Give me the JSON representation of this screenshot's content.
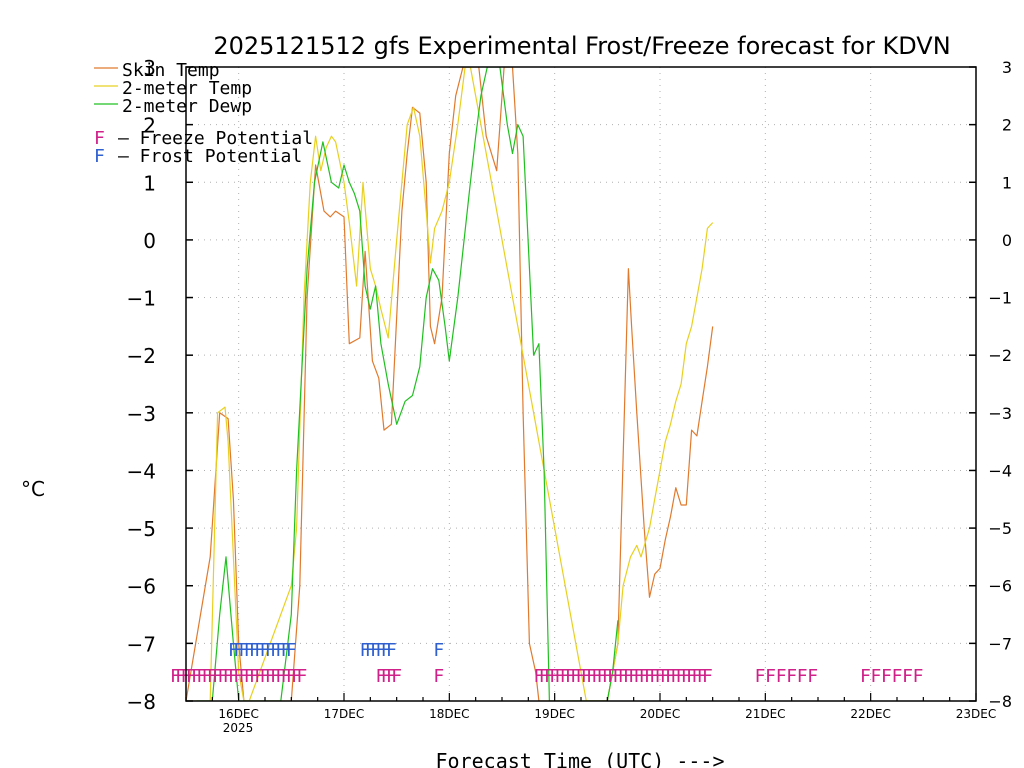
{
  "chart_data": {
    "type": "line",
    "title": "2025121512 gfs Experimental Frost/Freeze forecast for KDVN",
    "xlabel": "Forecast Time (UTC) --->",
    "ylabel": "°C",
    "ylim": [
      -8,
      3
    ],
    "xlim": [
      -0.5,
      7
    ],
    "grid": true,
    "yticks": [
      "-8",
      "-7",
      "-6",
      "-5",
      "-4",
      "-3",
      "-2",
      "-1",
      "0",
      "1",
      "2",
      "3"
    ],
    "xticks": [
      {
        "day": 0,
        "label": "16DEC"
      },
      {
        "day": 1,
        "label": "17DEC"
      },
      {
        "day": 2,
        "label": "18DEC"
      },
      {
        "day": 3,
        "label": "19DEC"
      },
      {
        "day": 4,
        "label": "20DEC"
      },
      {
        "day": 5,
        "label": "21DEC"
      },
      {
        "day": 6,
        "label": "22DEC"
      },
      {
        "day": 7,
        "label": "23DEC"
      }
    ],
    "year_label": "2025",
    "legend": {
      "placement": "top-left",
      "entries": [
        "Skin Temp",
        "2-meter Temp",
        "2-meter Dewp"
      ],
      "freeze_letter": "F",
      "freeze_text": "– Freeze Potential",
      "frost_letter": "F",
      "frost_text": "– Frost Potential"
    },
    "colors": {
      "skin": "#e07a2e",
      "temp2m": "#e8d020",
      "dewp": "#20c020",
      "freeze": "#d0208a",
      "frost": "#3060d0",
      "grid": "#b0b0b0"
    },
    "series": [
      {
        "name": "Skin Temp",
        "x": [
          -0.5,
          -0.27,
          -0.18,
          -0.1,
          -0.05,
          0.0,
          0.05,
          0.12,
          0.25,
          0.5,
          0.58,
          0.65,
          0.73,
          0.81,
          0.87,
          0.92,
          1.0,
          1.05,
          1.15,
          1.2,
          1.27,
          1.33,
          1.38,
          1.45,
          1.55,
          1.6,
          1.65,
          1.72,
          1.78,
          1.82,
          1.86,
          1.93,
          2.0,
          2.06,
          2.13,
          2.2,
          2.28,
          2.35,
          2.45,
          2.52,
          2.6,
          2.65,
          2.7,
          2.76,
          2.82,
          2.85,
          2.9,
          2.96,
          3.0,
          3.05,
          3.1,
          3.3,
          3.5,
          3.6,
          3.7,
          3.73,
          3.78,
          3.85,
          3.9,
          3.95,
          4.0,
          4.05,
          4.1,
          4.15,
          4.2,
          4.25,
          4.3,
          4.35,
          4.4,
          4.45,
          4.5
        ],
        "values": [
          -8.0,
          -5.5,
          -3.0,
          -3.1,
          -4.5,
          -7.0,
          -8.0,
          -8.0,
          -8.0,
          -8.0,
          -6.0,
          -1.0,
          1.3,
          0.5,
          0.4,
          0.5,
          0.4,
          -1.8,
          -1.7,
          -0.2,
          -2.1,
          -2.4,
          -3.3,
          -3.2,
          0.5,
          1.5,
          2.3,
          2.2,
          1.0,
          -1.5,
          -1.8,
          -1.0,
          1.5,
          2.5,
          3.0,
          3.0,
          3.0,
          1.8,
          1.2,
          3.0,
          3.0,
          1.5,
          -3.0,
          -7.0,
          -7.5,
          -8.0,
          -8.0,
          -8.0,
          -8.0,
          -8.0,
          -8.0,
          -8.0,
          -8.0,
          -7.0,
          -0.5,
          -1.5,
          -3.0,
          -5.0,
          -6.2,
          -5.8,
          -5.7,
          -5.2,
          -4.8,
          -4.3,
          -4.6,
          -4.6,
          -3.3,
          -3.4,
          -2.8,
          -2.2,
          -1.5
        ]
      },
      {
        "name": "2-meter Temp",
        "x": [
          -0.5,
          -0.37,
          -0.27,
          -0.2,
          -0.13,
          -0.1,
          -0.05,
          0.0,
          0.05,
          0.1,
          0.5,
          0.55,
          0.62,
          0.68,
          0.73,
          0.78,
          0.83,
          0.88,
          0.92,
          1.0,
          1.05,
          1.12,
          1.18,
          1.25,
          1.3,
          1.35,
          1.42,
          1.5,
          1.55,
          1.6,
          1.66,
          1.72,
          1.78,
          1.82,
          1.86,
          1.93,
          2.0,
          2.08,
          2.15,
          2.2,
          3.3,
          3.5,
          3.6,
          3.65,
          3.72,
          3.78,
          3.82,
          3.9,
          3.95,
          4.0,
          4.05,
          4.1,
          4.15,
          4.2,
          4.25,
          4.3,
          4.35,
          4.4,
          4.45,
          4.5
        ],
        "values": [
          -8.0,
          -8.0,
          -8.0,
          -3.0,
          -2.9,
          -3.5,
          -5.5,
          -7.5,
          -8.0,
          -8.0,
          -6.0,
          -5.0,
          -1.0,
          1.0,
          1.8,
          1.2,
          1.6,
          1.8,
          1.7,
          1.0,
          0.3,
          -0.8,
          1.0,
          -0.5,
          -0.8,
          -1.2,
          -1.7,
          0.0,
          1.0,
          2.0,
          2.3,
          1.8,
          0.5,
          -0.4,
          0.2,
          0.5,
          1.0,
          2.0,
          3.0,
          3.0,
          -8.0,
          -8.0,
          -7.0,
          -6.0,
          -5.5,
          -5.3,
          -5.5,
          -5.0,
          -4.5,
          -4.0,
          -3.5,
          -3.2,
          -2.8,
          -2.5,
          -1.8,
          -1.5,
          -1.0,
          -0.5,
          0.2,
          0.3
        ]
      },
      {
        "name": "2-meter Dewp",
        "x": [
          -0.4,
          -0.25,
          -0.18,
          -0.12,
          -0.05,
          0.0,
          0.05,
          0.1,
          0.4,
          0.5,
          0.55,
          0.65,
          0.72,
          0.8,
          0.88,
          0.95,
          1.0,
          1.05,
          1.1,
          1.15,
          1.2,
          1.25,
          1.3,
          1.35,
          1.42,
          1.5,
          1.58,
          1.65,
          1.72,
          1.78,
          1.84,
          1.9,
          1.96,
          2.0,
          2.08,
          2.2,
          2.25,
          2.3,
          2.36,
          2.42,
          2.48,
          2.55,
          2.6,
          2.65,
          2.7,
          2.8,
          2.85,
          2.9,
          2.95,
          3.0,
          3.05,
          3.45,
          3.5,
          3.55,
          3.6
        ],
        "values": [
          -8.0,
          -8.0,
          -6.5,
          -5.5,
          -7.0,
          -8.0,
          -8.0,
          -8.0,
          -8.0,
          -6.5,
          -4.0,
          -0.5,
          1.0,
          1.7,
          1.0,
          0.9,
          1.3,
          1.0,
          0.8,
          0.5,
          -0.8,
          -1.2,
          -0.8,
          -1.8,
          -2.5,
          -3.2,
          -2.8,
          -2.7,
          -2.2,
          -1.0,
          -0.5,
          -0.7,
          -1.5,
          -2.1,
          -1.0,
          1.0,
          1.8,
          2.5,
          3.0,
          3.0,
          3.0,
          2.0,
          1.5,
          2.0,
          1.8,
          -2.0,
          -1.8,
          -4.0,
          -8.0,
          -8.0,
          -8.0,
          -8.0,
          -8.0,
          -7.5,
          -6.6
        ]
      }
    ],
    "frost_marks": {
      "label": "F",
      "level": -7.1,
      "x": [
        -0.05,
        0.0,
        0.05,
        0.1,
        0.15,
        0.2,
        0.25,
        0.3,
        0.35,
        0.4,
        0.45,
        0.5,
        1.2,
        1.25,
        1.3,
        1.35,
        1.4,
        1.45,
        1.9
      ]
    },
    "freeze_marks": {
      "label": "F",
      "level": -7.55,
      "x": [
        -0.6,
        -0.55,
        -0.5,
        -0.45,
        -0.4,
        -0.35,
        -0.3,
        -0.25,
        -0.2,
        -0.15,
        -0.1,
        -0.05,
        0.0,
        0.05,
        0.1,
        0.15,
        0.2,
        0.25,
        0.3,
        0.35,
        0.4,
        0.45,
        0.5,
        0.55,
        0.6,
        1.35,
        1.4,
        1.45,
        1.5,
        1.9,
        2.85,
        2.9,
        2.95,
        3.0,
        3.05,
        3.1,
        3.15,
        3.2,
        3.25,
        3.3,
        3.35,
        3.4,
        3.45,
        3.5,
        3.55,
        3.6,
        3.65,
        3.7,
        3.75,
        3.8,
        3.85,
        3.9,
        3.95,
        4.0,
        4.05,
        4.1,
        4.15,
        4.2,
        4.25,
        4.3,
        4.35,
        4.4,
        4.45,
        4.95,
        5.05,
        5.15,
        5.25,
        5.35,
        5.45,
        5.95,
        6.05,
        6.15,
        6.25,
        6.35,
        6.45
      ]
    }
  }
}
